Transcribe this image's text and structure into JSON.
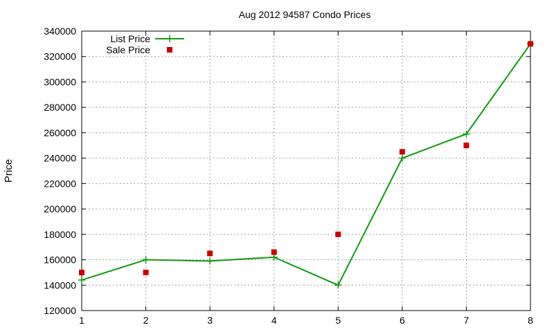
{
  "chart_data": {
    "type": "line",
    "title": "Aug 2012 94587 Condo Prices",
    "xlabel": "",
    "ylabel": "Price",
    "x": [
      1,
      2,
      3,
      4,
      5,
      6,
      7,
      8
    ],
    "xlim": [
      1,
      8
    ],
    "ylim": [
      120000,
      340000
    ],
    "xticks": [
      "1",
      "2",
      "3",
      "4",
      "5",
      "6",
      "7",
      "8"
    ],
    "yticks": [
      "120000",
      "140000",
      "160000",
      "180000",
      "200000",
      "220000",
      "240000",
      "260000",
      "280000",
      "300000",
      "320000",
      "340000"
    ],
    "grid": true,
    "legend_position": "top-left",
    "series": [
      {
        "name": "List Price",
        "style": "line+cross",
        "color": "#119911",
        "values": [
          144000,
          160000,
          159000,
          162000,
          140000,
          240000,
          259000,
          330000
        ]
      },
      {
        "name": "Sale Price",
        "style": "square-points",
        "color": "#cc0000",
        "values": [
          150000,
          150000,
          165000,
          166000,
          180000,
          245000,
          250000,
          330000
        ]
      }
    ]
  }
}
